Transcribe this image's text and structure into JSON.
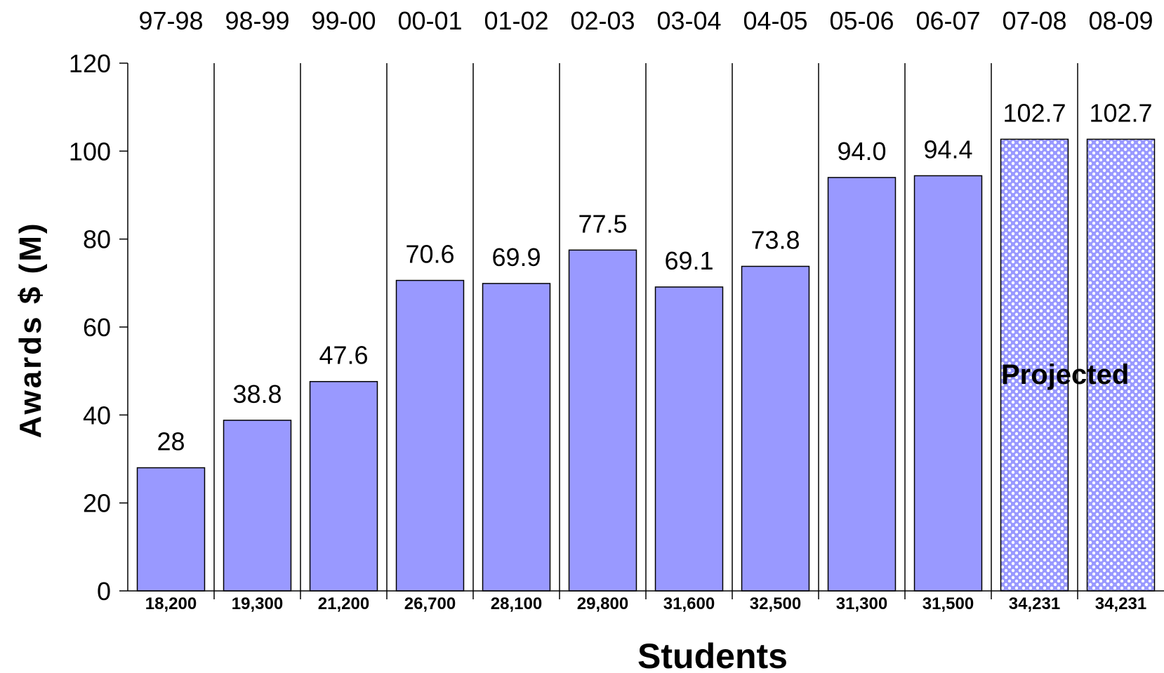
{
  "chart_data": {
    "type": "bar",
    "categories": [
      "97-98",
      "98-99",
      "99-00",
      "00-01",
      "01-02",
      "02-03",
      "03-04",
      "04-05",
      "05-06",
      "06-07",
      "07-08",
      "08-09"
    ],
    "values": [
      28,
      38.8,
      47.6,
      70.6,
      69.9,
      77.5,
      69.1,
      73.8,
      94.0,
      94.4,
      102.7,
      102.7
    ],
    "value_labels": [
      "28",
      "38.8",
      "47.6",
      "70.6",
      "69.9",
      "77.5",
      "69.1",
      "73.8",
      "94.0",
      "94.4",
      "102.7",
      "102.7"
    ],
    "students": [
      "18,200",
      "19,300",
      "21,200",
      "26,700",
      "28,100",
      "29,800",
      "31,600",
      "32,500",
      "31,300",
      "31,500",
      "34,231",
      "34,231"
    ],
    "projected": [
      false,
      false,
      false,
      false,
      false,
      false,
      false,
      false,
      false,
      false,
      true,
      true
    ],
    "projected_annotation": "Projected",
    "ylabel": "Awards $ (M)",
    "xlabel": "Students",
    "ylim": [
      0,
      120
    ],
    "yticks": [
      0,
      20,
      40,
      60,
      80,
      100,
      120
    ],
    "grid": false,
    "category_separators": true,
    "colors": {
      "bar_fill": "#9999ff",
      "bar_stroke": "#000000",
      "projected_dot": "#ffffff"
    }
  }
}
